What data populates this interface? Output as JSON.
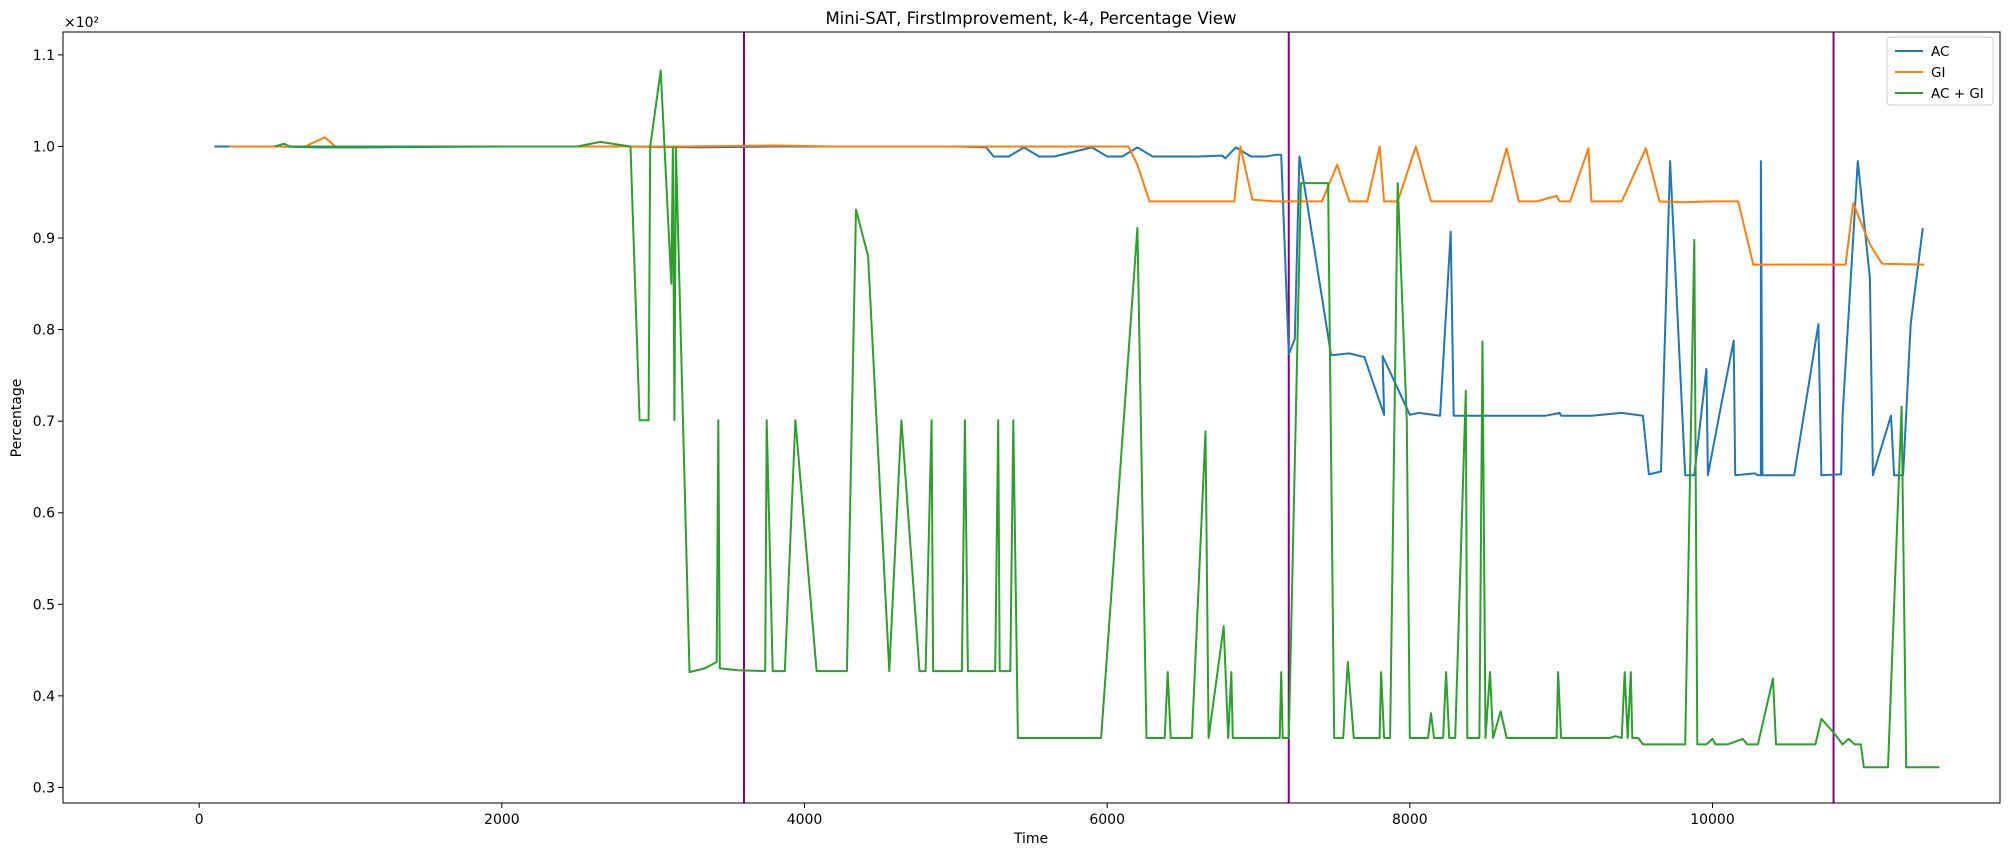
{
  "chart_data": {
    "type": "line",
    "title": "Mini-SAT, FirstImprovement, k-4, Percentage View",
    "xlabel": "Time",
    "ylabel": "Percentage",
    "y_offset_text": "×10²",
    "xlim": [
      -900,
      11900
    ],
    "ylim": [
      0.283,
      1.125
    ],
    "xticks": [
      0,
      2000,
      4000,
      6000,
      8000,
      10000
    ],
    "xtick_labels": [
      "0",
      "2000",
      "4000",
      "6000",
      "8000",
      "10000"
    ],
    "yticks": [
      0.3,
      0.4,
      0.5,
      0.6,
      0.7,
      0.8,
      0.9,
      1.0,
      1.1
    ],
    "ytick_labels": [
      "0.3",
      "0.4",
      "0.5",
      "0.6",
      "0.7",
      "0.8",
      "0.9",
      "1.0",
      "1.1"
    ],
    "grid": false,
    "legend_position": "top-right",
    "vertical_lines": {
      "x": [
        3600,
        7200,
        10800
      ],
      "color": "#800080"
    },
    "series": [
      {
        "name": "AC",
        "color": "#1f77b4",
        "points": [
          [
            100,
            1.0
          ],
          [
            500,
            1.0
          ],
          [
            800,
            0.999
          ],
          [
            1100,
            0.999
          ],
          [
            2000,
            1.0
          ],
          [
            2800,
            1.0
          ],
          [
            3300,
            0.999
          ],
          [
            3800,
            1.0
          ],
          [
            4300,
            1.0
          ],
          [
            4700,
            1.0
          ],
          [
            5000,
            1.0
          ],
          [
            5200,
            0.999
          ],
          [
            5250,
            0.989
          ],
          [
            5350,
            0.989
          ],
          [
            5450,
            0.999
          ],
          [
            5550,
            0.989
          ],
          [
            5650,
            0.989
          ],
          [
            5900,
            0.999
          ],
          [
            6000,
            0.989
          ],
          [
            6100,
            0.989
          ],
          [
            6200,
            0.999
          ],
          [
            6300,
            0.989
          ],
          [
            6600,
            0.989
          ],
          [
            6760,
            0.99
          ],
          [
            6780,
            0.987
          ],
          [
            6850,
            0.999
          ],
          [
            6950,
            0.989
          ],
          [
            7050,
            0.989
          ],
          [
            7120,
            0.991
          ],
          [
            7150,
            0.991
          ],
          [
            7200,
            0.773
          ],
          [
            7240,
            0.79
          ],
          [
            7270,
            0.989
          ],
          [
            7300,
            0.96
          ],
          [
            7480,
            0.772
          ],
          [
            7600,
            0.774
          ],
          [
            7700,
            0.77
          ],
          [
            7830,
            0.707
          ],
          [
            7820,
            0.771
          ],
          [
            7880,
            0.75
          ],
          [
            8000,
            0.707
          ],
          [
            8060,
            0.709
          ],
          [
            8200,
            0.706
          ],
          [
            8270,
            0.907
          ],
          [
            8290,
            0.706
          ],
          [
            8500,
            0.706
          ],
          [
            8600,
            0.706
          ],
          [
            8900,
            0.706
          ],
          [
            8990,
            0.709
          ],
          [
            9000,
            0.706
          ],
          [
            9200,
            0.706
          ],
          [
            9400,
            0.709
          ],
          [
            9540,
            0.706
          ],
          [
            9580,
            0.642
          ],
          [
            9660,
            0.645
          ],
          [
            9720,
            0.984
          ],
          [
            9820,
            0.641
          ],
          [
            9880,
            0.641
          ],
          [
            9960,
            0.757
          ],
          [
            9970,
            0.641
          ],
          [
            10060,
            0.72
          ],
          [
            10140,
            0.788
          ],
          [
            10150,
            0.641
          ],
          [
            10280,
            0.643
          ],
          [
            10300,
            0.641
          ],
          [
            10320,
            0.641
          ],
          [
            10320,
            0.984
          ],
          [
            10330,
            0.641
          ],
          [
            10540,
            0.641
          ],
          [
            10700,
            0.806
          ],
          [
            10720,
            0.641
          ],
          [
            10850,
            0.642
          ],
          [
            10860,
            0.707
          ],
          [
            10960,
            0.984
          ],
          [
            11040,
            0.856
          ],
          [
            11060,
            0.641
          ],
          [
            11180,
            0.706
          ],
          [
            11200,
            0.641
          ],
          [
            11260,
            0.641
          ],
          [
            11310,
            0.806
          ],
          [
            11390,
            0.911
          ]
        ]
      },
      {
        "name": "GI",
        "color": "#ff7f0e",
        "points": [
          [
            200,
            1.0
          ],
          [
            400,
            1.0
          ],
          [
            700,
            1.0
          ],
          [
            830,
            1.01
          ],
          [
            900,
            1.0
          ],
          [
            1200,
            1.0
          ],
          [
            2200,
            1.0
          ],
          [
            2800,
            1.0
          ],
          [
            3200,
            1.0
          ],
          [
            3800,
            1.001
          ],
          [
            4200,
            1.0
          ],
          [
            4800,
            1.0
          ],
          [
            5200,
            1.0
          ],
          [
            5800,
            1.0
          ],
          [
            6140,
            1.0
          ],
          [
            6200,
            0.98
          ],
          [
            6280,
            0.94
          ],
          [
            6600,
            0.94
          ],
          [
            6840,
            0.94
          ],
          [
            6880,
            1.0
          ],
          [
            6960,
            0.942
          ],
          [
            7100,
            0.94
          ],
          [
            7300,
            0.94
          ],
          [
            7420,
            0.94
          ],
          [
            7520,
            0.98
          ],
          [
            7600,
            0.94
          ],
          [
            7720,
            0.94
          ],
          [
            7800,
            1.0
          ],
          [
            7830,
            0.94
          ],
          [
            7920,
            0.94
          ],
          [
            8040,
            1.0
          ],
          [
            8140,
            0.94
          ],
          [
            8400,
            0.94
          ],
          [
            8540,
            0.94
          ],
          [
            8640,
            0.998
          ],
          [
            8720,
            0.94
          ],
          [
            8840,
            0.94
          ],
          [
            8970,
            0.946
          ],
          [
            8990,
            0.94
          ],
          [
            9060,
            0.94
          ],
          [
            9180,
            0.998
          ],
          [
            9200,
            0.94
          ],
          [
            9400,
            0.94
          ],
          [
            9560,
            0.998
          ],
          [
            9650,
            0.94
          ],
          [
            9800,
            0.939
          ],
          [
            10000,
            0.94
          ],
          [
            10170,
            0.94
          ],
          [
            10270,
            0.871
          ],
          [
            10450,
            0.871
          ],
          [
            10600,
            0.871
          ],
          [
            10880,
            0.871
          ],
          [
            10930,
            0.938
          ],
          [
            11040,
            0.893
          ],
          [
            11120,
            0.872
          ],
          [
            11400,
            0.871
          ]
        ]
      },
      {
        "name": "AC + GI",
        "color": "#2ca02c",
        "points": [
          [
            500,
            1.0
          ],
          [
            560,
            1.003
          ],
          [
            600,
            1.0
          ],
          [
            1000,
            1.0
          ],
          [
            2000,
            1.0
          ],
          [
            2500,
            1.0
          ],
          [
            2650,
            1.005
          ],
          [
            2850,
            1.0
          ],
          [
            2910,
            0.701
          ],
          [
            2970,
            0.701
          ],
          [
            2980,
            1.0
          ],
          [
            3050,
            1.083
          ],
          [
            3120,
            0.85
          ],
          [
            3130,
            0.999
          ],
          [
            3140,
            0.701
          ],
          [
            3150,
            0.999
          ],
          [
            3240,
            0.426
          ],
          [
            3340,
            0.43
          ],
          [
            3420,
            0.437
          ],
          [
            3430,
            0.701
          ],
          [
            3440,
            0.43
          ],
          [
            3560,
            0.428
          ],
          [
            3740,
            0.427
          ],
          [
            3750,
            0.701
          ],
          [
            3790,
            0.427
          ],
          [
            3870,
            0.427
          ],
          [
            3940,
            0.701
          ],
          [
            4080,
            0.427
          ],
          [
            4280,
            0.427
          ],
          [
            4340,
            0.931
          ],
          [
            4420,
            0.88
          ],
          [
            4560,
            0.427
          ],
          [
            4640,
            0.701
          ],
          [
            4760,
            0.427
          ],
          [
            4800,
            0.427
          ],
          [
            4840,
            0.701
          ],
          [
            4850,
            0.427
          ],
          [
            5040,
            0.427
          ],
          [
            5060,
            0.701
          ],
          [
            5080,
            0.427
          ],
          [
            5260,
            0.427
          ],
          [
            5280,
            0.701
          ],
          [
            5290,
            0.427
          ],
          [
            5360,
            0.427
          ],
          [
            5380,
            0.701
          ],
          [
            5410,
            0.354
          ],
          [
            5600,
            0.354
          ],
          [
            5800,
            0.354
          ],
          [
            5960,
            0.354
          ],
          [
            6200,
            0.911
          ],
          [
            6260,
            0.354
          ],
          [
            6380,
            0.354
          ],
          [
            6400,
            0.426
          ],
          [
            6420,
            0.354
          ],
          [
            6560,
            0.354
          ],
          [
            6650,
            0.689
          ],
          [
            6670,
            0.354
          ],
          [
            6770,
            0.476
          ],
          [
            6800,
            0.354
          ],
          [
            6820,
            0.426
          ],
          [
            6830,
            0.354
          ],
          [
            7140,
            0.354
          ],
          [
            7150,
            0.426
          ],
          [
            7160,
            0.354
          ],
          [
            7200,
            0.354
          ],
          [
            7280,
            0.96
          ],
          [
            7460,
            0.96
          ],
          [
            7500,
            0.354
          ],
          [
            7560,
            0.354
          ],
          [
            7590,
            0.437
          ],
          [
            7630,
            0.354
          ],
          [
            7700,
            0.354
          ],
          [
            7780,
            0.354
          ],
          [
            7800,
            0.354
          ],
          [
            7810,
            0.426
          ],
          [
            7830,
            0.354
          ],
          [
            7870,
            0.354
          ],
          [
            7920,
            0.96
          ],
          [
            7980,
            0.7
          ],
          [
            8000,
            0.354
          ],
          [
            8120,
            0.354
          ],
          [
            8140,
            0.381
          ],
          [
            8160,
            0.354
          ],
          [
            8220,
            0.354
          ],
          [
            8240,
            0.426
          ],
          [
            8260,
            0.354
          ],
          [
            8300,
            0.354
          ],
          [
            8370,
            0.733
          ],
          [
            8380,
            0.354
          ],
          [
            8460,
            0.354
          ],
          [
            8480,
            0.787
          ],
          [
            8500,
            0.354
          ],
          [
            8530,
            0.426
          ],
          [
            8550,
            0.354
          ],
          [
            8600,
            0.383
          ],
          [
            8640,
            0.354
          ],
          [
            8820,
            0.354
          ],
          [
            8970,
            0.354
          ],
          [
            8980,
            0.426
          ],
          [
            9000,
            0.354
          ],
          [
            9320,
            0.354
          ],
          [
            9360,
            0.356
          ],
          [
            9400,
            0.354
          ],
          [
            9420,
            0.426
          ],
          [
            9440,
            0.354
          ],
          [
            9460,
            0.426
          ],
          [
            9470,
            0.354
          ],
          [
            9510,
            0.354
          ],
          [
            9540,
            0.347
          ],
          [
            9680,
            0.347
          ],
          [
            9820,
            0.347
          ],
          [
            9880,
            0.898
          ],
          [
            9900,
            0.347
          ],
          [
            9960,
            0.347
          ],
          [
            10000,
            0.353
          ],
          [
            10020,
            0.347
          ],
          [
            10100,
            0.347
          ],
          [
            10200,
            0.353
          ],
          [
            10230,
            0.347
          ],
          [
            10300,
            0.347
          ],
          [
            10400,
            0.419
          ],
          [
            10420,
            0.347
          ],
          [
            10680,
            0.347
          ],
          [
            10720,
            0.375
          ],
          [
            10800,
            0.36
          ],
          [
            10860,
            0.347
          ],
          [
            10900,
            0.353
          ],
          [
            10940,
            0.347
          ],
          [
            10980,
            0.347
          ],
          [
            11000,
            0.322
          ],
          [
            11160,
            0.322
          ],
          [
            11250,
            0.716
          ],
          [
            11280,
            0.322
          ],
          [
            11500,
            0.322
          ]
        ]
      }
    ]
  }
}
